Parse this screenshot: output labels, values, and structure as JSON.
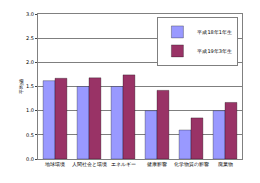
{
  "chart_data": {
    "type": "bar",
    "y_label": "平均値",
    "categories": [
      "地球環境",
      "人間社会と環境",
      "エネルギー",
      "健康影響",
      "化学物質の影響",
      "廃棄物"
    ],
    "series": [
      {
        "name": "平成18年1年生",
        "color": "#9999ff",
        "values": [
          1.62,
          1.5,
          1.5,
          1.0,
          0.6,
          1.0
        ]
      },
      {
        "name": "平成19年3年生",
        "color": "#993366",
        "values": [
          1.67,
          1.68,
          1.74,
          1.42,
          0.85,
          1.17
        ]
      }
    ],
    "ylim": [
      0,
      3
    ],
    "yticks": [
      {
        "value": 0,
        "label": "0.0"
      },
      0.5,
      {
        "value": 1,
        "label": "1.0"
      },
      1.5,
      {
        "value": 2,
        "label": "2.0"
      },
      2.5,
      {
        "value": 3,
        "label": "3.0"
      }
    ],
    "grid": true,
    "legend": "upper right"
  }
}
